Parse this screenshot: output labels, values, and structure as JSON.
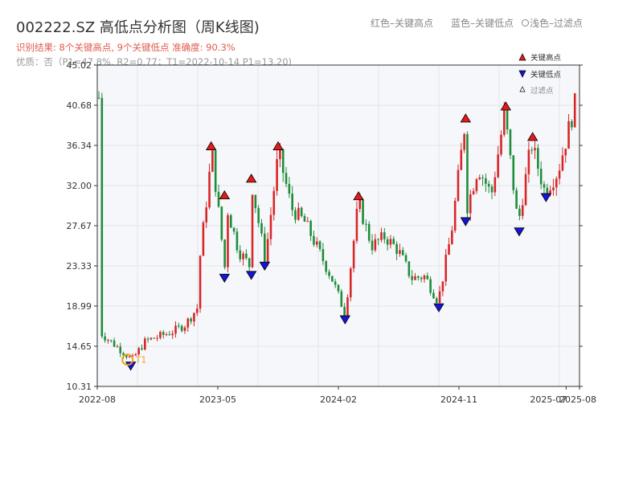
{
  "header": {
    "title": "002222.SZ 高低点分析图（周K线图)",
    "legend_red": "红色–关键高点",
    "legend_blue": "蓝色–关键低点",
    "legend_filter": "浅色–过滤点",
    "result_line": "识别结果: 8个关键高点, 9个关键低点  准确度: 90.3%",
    "quality_line": "优质：否（P1=47.8%, R2=0.77；T1=2022-10-14 P1=13.20)"
  },
  "chart_data": {
    "type": "candlestick",
    "y_ticks": [
      "45.02",
      "40.68",
      "36.34",
      "32.00",
      "27.67",
      "23.33",
      "18.99",
      "14.65",
      "10.31"
    ],
    "ylim": [
      10.31,
      45.02
    ],
    "x_ticks": [
      "2022-08",
      "2023-05",
      "2024-02",
      "2024-11",
      "2025-07",
      "2025-08"
    ],
    "x_range": [
      "2022-08",
      "2025-08"
    ],
    "legend": {
      "high": "关键高点",
      "low": "关键低点",
      "filtered": "过滤点"
    },
    "t1_label": "T1",
    "t1_point": {
      "date": "2022-10-14",
      "price": 13.2
    },
    "key_highs": [
      {
        "date": "2023-04",
        "price": 35.6
      },
      {
        "date": "2023-05",
        "price": 30.3
      },
      {
        "date": "2023-07",
        "price": 32.1
      },
      {
        "date": "2023-09",
        "price": 35.6
      },
      {
        "date": "2024-03",
        "price": 30.2
      },
      {
        "date": "2024-11",
        "price": 38.6
      },
      {
        "date": "2025-02",
        "price": 39.9
      },
      {
        "date": "2025-04",
        "price": 36.6
      }
    ],
    "key_lows": [
      {
        "date": "2022-10",
        "price": 13.2
      },
      {
        "date": "2023-05",
        "price": 22.7
      },
      {
        "date": "2023-07",
        "price": 23.0
      },
      {
        "date": "2023-08",
        "price": 24.0
      },
      {
        "date": "2024-02",
        "price": 18.2
      },
      {
        "date": "2024-09",
        "price": 19.5
      },
      {
        "date": "2024-11",
        "price": 28.8
      },
      {
        "date": "2025-03",
        "price": 27.7
      },
      {
        "date": "2025-05",
        "price": 31.4
      }
    ],
    "anchors": [
      [
        "2022-08",
        16.0
      ],
      [
        "2022-10",
        13.2
      ],
      [
        "2022-11",
        15.2
      ],
      [
        "2023-01",
        16.2
      ],
      [
        "2023-02",
        17.0
      ],
      [
        "2023-03",
        19.0
      ],
      [
        "2023-03",
        23.0
      ],
      [
        "2023-04",
        35.6
      ],
      [
        "2023-05",
        22.7
      ],
      [
        "2023-05",
        30.3
      ],
      [
        "2023-06",
        25.0
      ],
      [
        "2023-07",
        23.0
      ],
      [
        "2023-07",
        32.1
      ],
      [
        "2023-08",
        24.0
      ],
      [
        "2023-09",
        35.6
      ],
      [
        "2023-10",
        29.5
      ],
      [
        "2023-11",
        28.0
      ],
      [
        "2024-01",
        22.0
      ],
      [
        "2024-02",
        18.2
      ],
      [
        "2024-03",
        30.2
      ],
      [
        "2024-04",
        25.5
      ],
      [
        "2024-05",
        26.5
      ],
      [
        "2024-06",
        25.0
      ],
      [
        "2024-07",
        22.0
      ],
      [
        "2024-08",
        22.2
      ],
      [
        "2024-09",
        19.5
      ],
      [
        "2024-10",
        27.0
      ],
      [
        "2024-11",
        38.6
      ],
      [
        "2024-11",
        28.8
      ],
      [
        "2024-12",
        34.0
      ],
      [
        "2025-01",
        31.0
      ],
      [
        "2025-02",
        39.9
      ],
      [
        "2025-03",
        27.7
      ],
      [
        "2025-04",
        36.6
      ],
      [
        "2025-05",
        31.4
      ],
      [
        "2025-06",
        33.5
      ],
      [
        "2025-08",
        41.5
      ]
    ],
    "colors": {
      "up": "#d62728",
      "down": "#1f8c3a",
      "high": "#e31a1c",
      "low": "#1515d6",
      "t1": "#f0a020"
    }
  }
}
